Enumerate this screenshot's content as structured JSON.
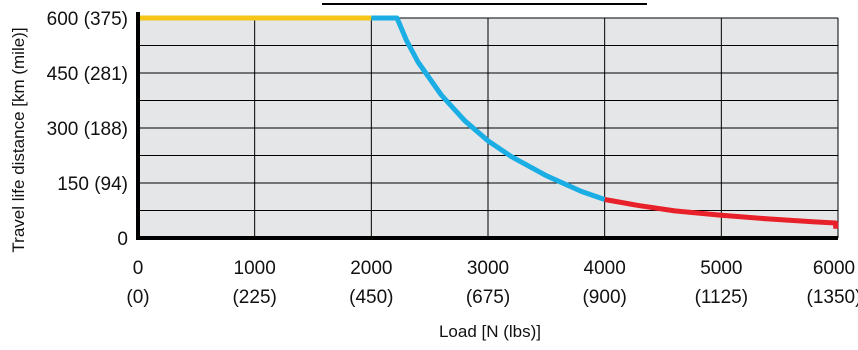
{
  "chart_data": {
    "type": "line",
    "title": "",
    "xlabel": "Load [N (lbs)]",
    "ylabel": "Travel life distance [km (mile)]",
    "xlim": [
      0,
      6000
    ],
    "ylim": [
      0,
      600
    ],
    "grid": true,
    "x_ticks": [
      {
        "value": 0,
        "label": "0",
        "sublabel": "(0)"
      },
      {
        "value": 1000,
        "label": "1000",
        "sublabel": "(225)"
      },
      {
        "value": 2000,
        "label": "2000",
        "sublabel": "(450)"
      },
      {
        "value": 3000,
        "label": "3000",
        "sublabel": "(675)"
      },
      {
        "value": 4000,
        "label": "4000",
        "sublabel": "(900)"
      },
      {
        "value": 5000,
        "label": "5000",
        "sublabel": "(1125)"
      },
      {
        "value": 6000,
        "label": "6000",
        "sublabel": "(1350)"
      }
    ],
    "y_ticks": [
      {
        "value": 0,
        "label": "0"
      },
      {
        "value": 150,
        "label": "150 (94)"
      },
      {
        "value": 300,
        "label": "300 (188)"
      },
      {
        "value": 450,
        "label": "450 (281)"
      },
      {
        "value": 600,
        "label": "600 (375)"
      }
    ],
    "series": [
      {
        "color": "#f5c518",
        "x": [
          0,
          2000
        ],
        "y": [
          600,
          600
        ]
      },
      {
        "color": "#1aaee4",
        "x": [
          2000,
          2220,
          2300,
          2400,
          2600,
          2800,
          3000,
          3200,
          3500,
          3800,
          4000
        ],
        "y": [
          600,
          600,
          540,
          480,
          390,
          320,
          265,
          222,
          170,
          127,
          105
        ]
      },
      {
        "color": "#e8202a",
        "x": [
          4000,
          4300,
          4600,
          5000,
          5400,
          5800,
          5980,
          5980
        ],
        "y": [
          105,
          88,
          74,
          62,
          52,
          44,
          41,
          25
        ]
      }
    ]
  },
  "colors": {
    "plot_background": "#e5e6e8",
    "grid": "#000000",
    "axis": "#000000"
  }
}
